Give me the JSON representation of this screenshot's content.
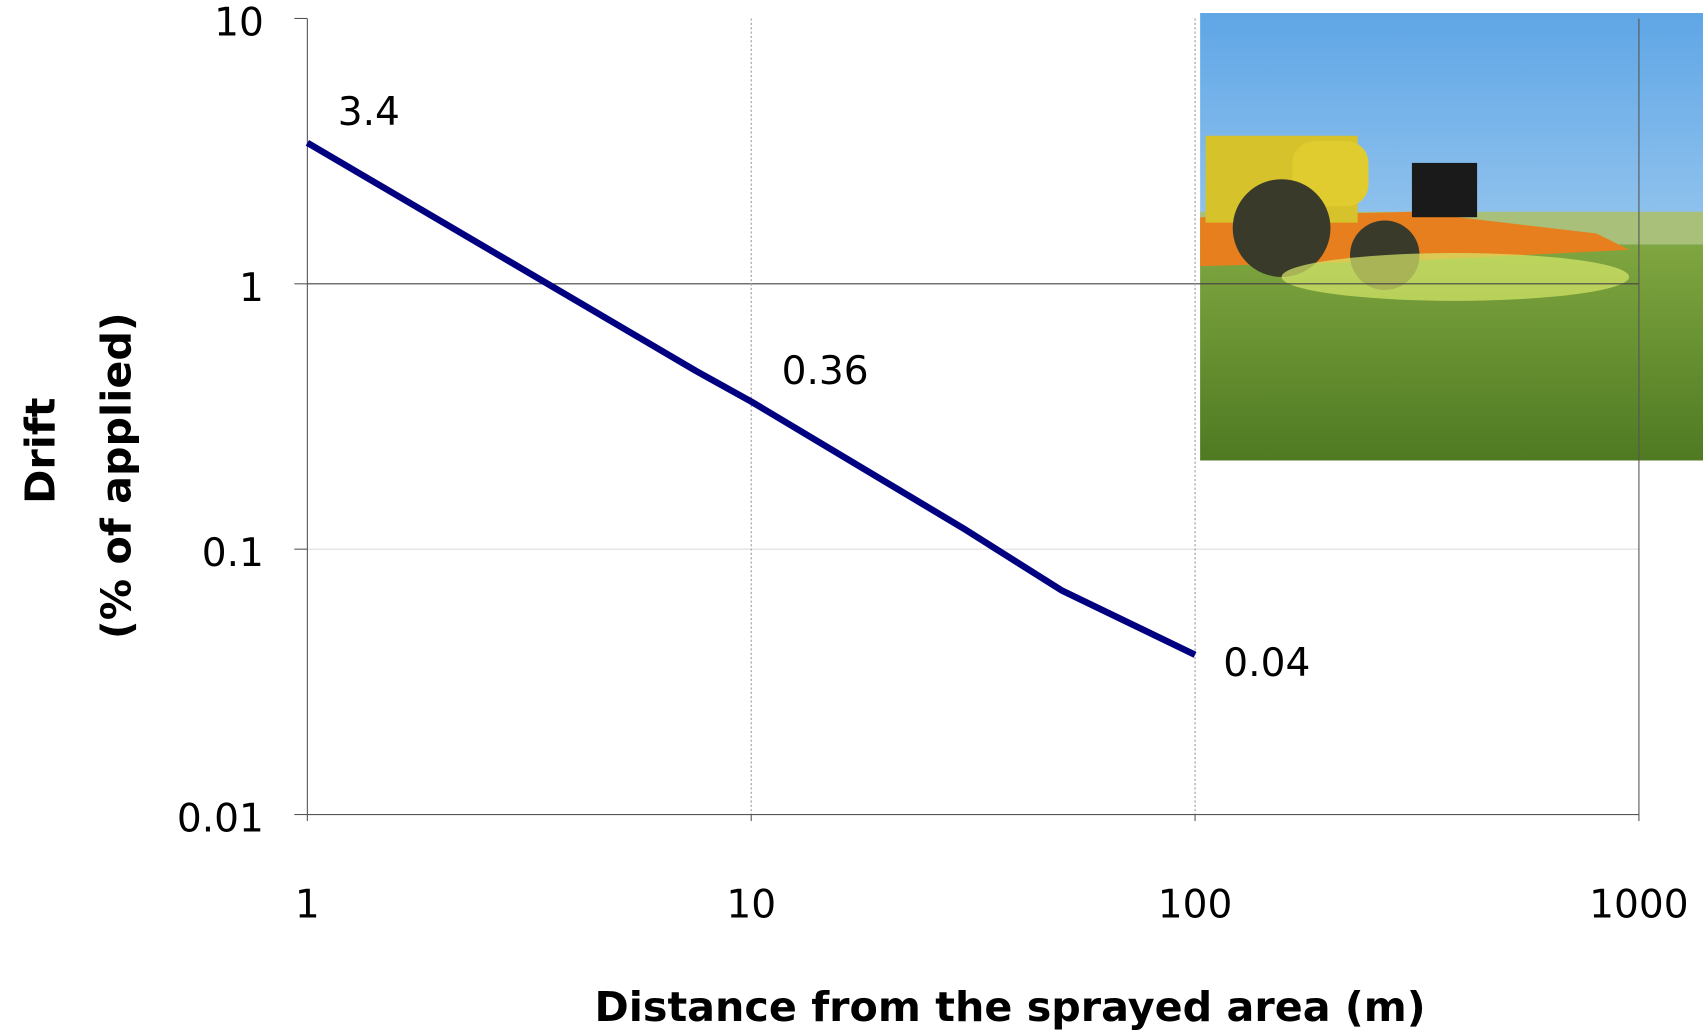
{
  "chart_data": {
    "type": "line",
    "x_label": "Distance from the sprayed area (m)",
    "y_label": [
      "Drift",
      "(% of applied)"
    ],
    "x": [
      1,
      7.5,
      10,
      30,
      50,
      100
    ],
    "values": [
      3.4,
      0.47,
      0.36,
      0.12,
      0.07,
      0.04
    ],
    "value_labels": [
      "3.4",
      null,
      "0.36",
      null,
      null,
      "0.04"
    ],
    "color": "#000080",
    "xscale": "log",
    "yscale": "log",
    "xlim": [
      1,
      1000
    ],
    "xticks": [
      1,
      10,
      100,
      1000
    ],
    "ylim": [
      0.01,
      10
    ],
    "yticks": [
      0.01,
      0.1,
      1,
      10
    ],
    "grid": true
  }
}
